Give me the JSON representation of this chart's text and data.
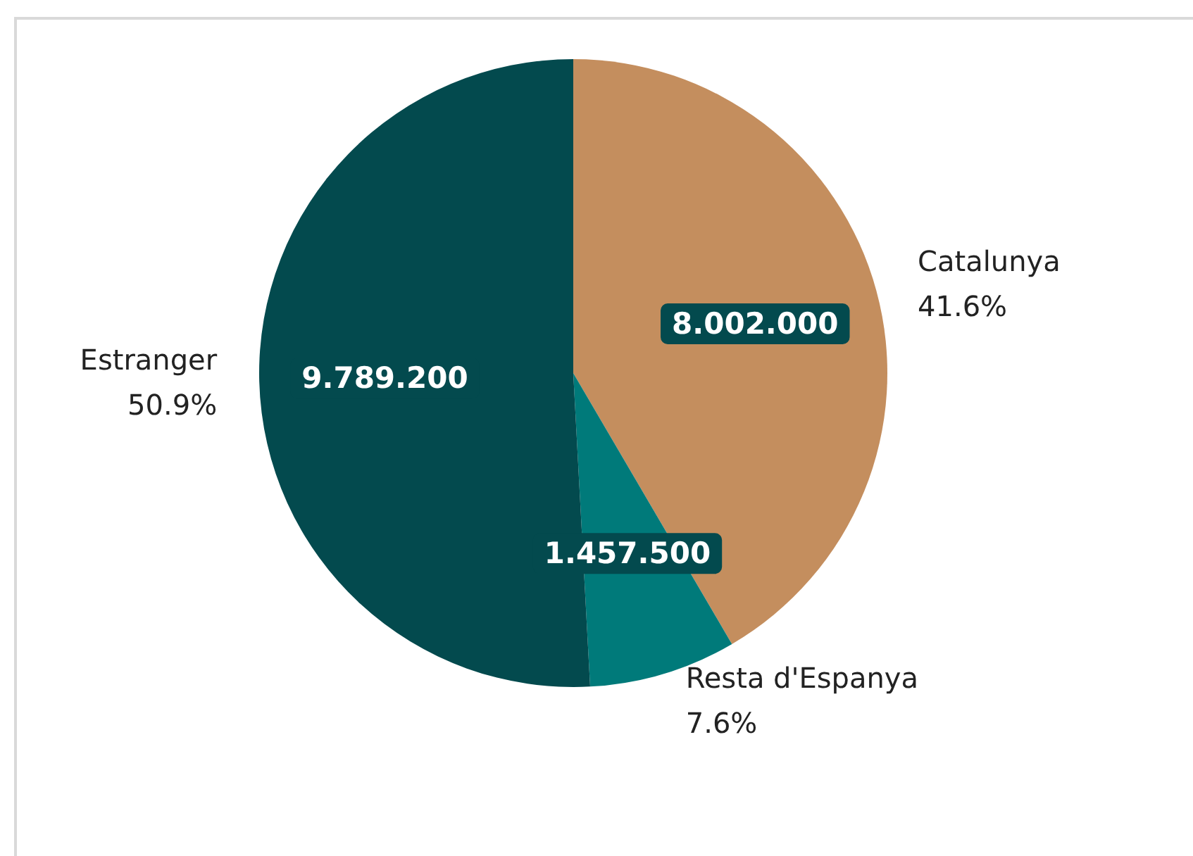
{
  "chart_data": {
    "type": "pie",
    "categories": [
      "Catalunya",
      "Resta d'Espanya",
      "Estranger"
    ],
    "values": [
      8002000,
      1457500,
      9789200
    ],
    "colors": [
      "#c48e5e",
      "#007a7a",
      "#034a4e"
    ],
    "value_labels": [
      "8.002.000",
      "1.457.500",
      "9.789.200"
    ],
    "annotations": [
      "41.6%",
      "7.6%",
      "50.9%"
    ],
    "legend": false
  }
}
